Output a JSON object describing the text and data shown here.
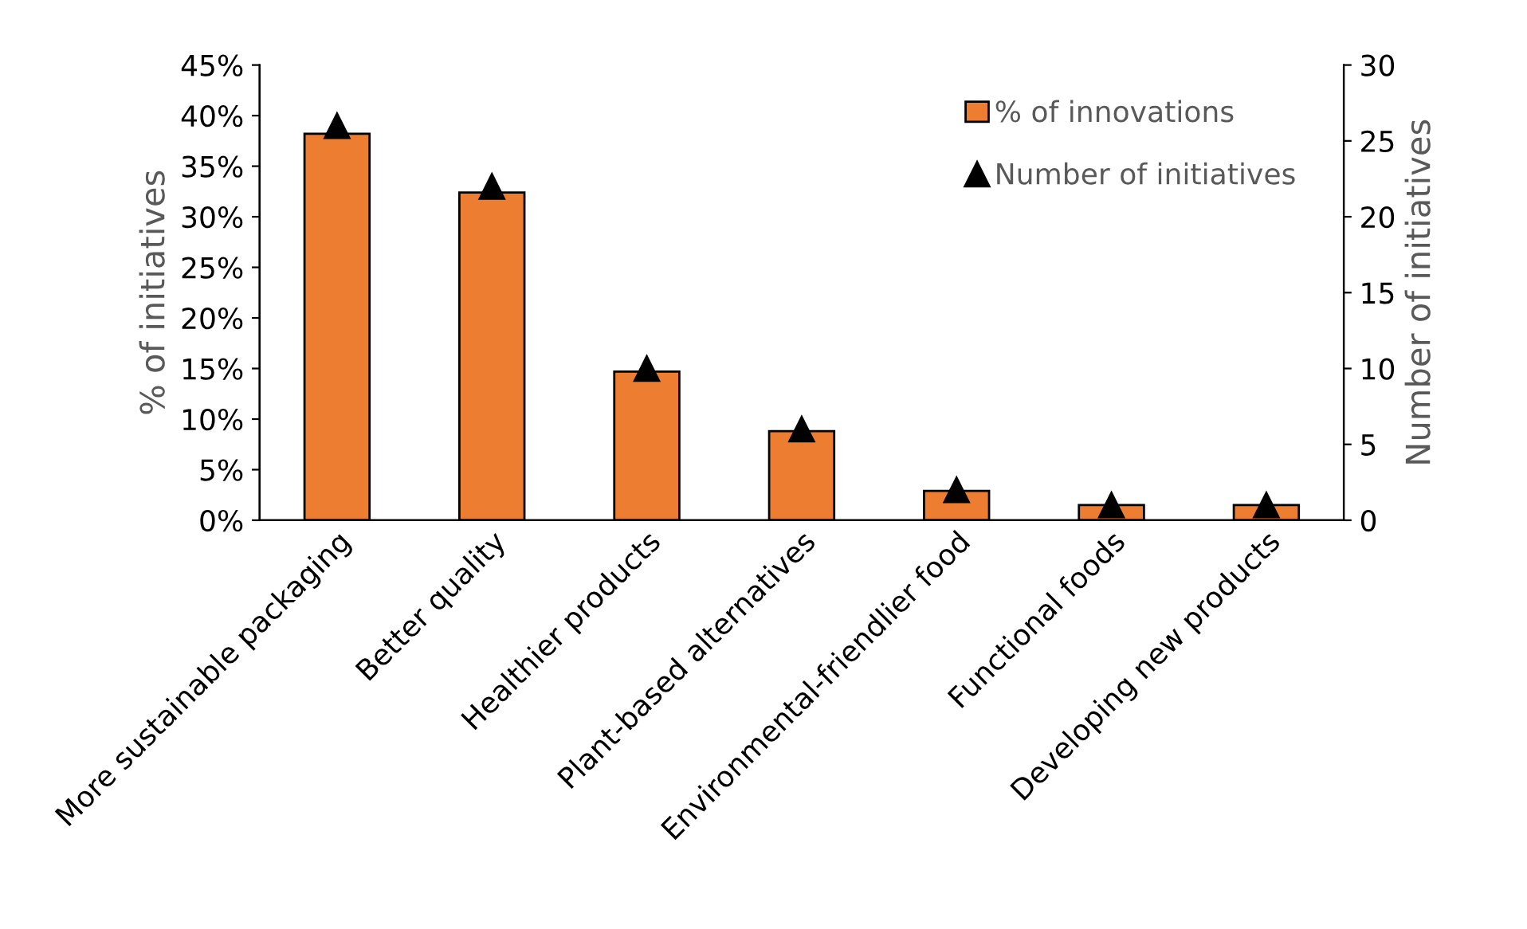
{
  "chart_data": {
    "type": "bar",
    "categories": [
      "More sustainable packaging",
      "Better quality",
      "Healthier products",
      "Plant-based alternatives",
      "Environmental-friendlier food",
      "Functional foods",
      "Developing new products"
    ],
    "ylabel": "% of initiatives",
    "y2label": "Number of initiatives",
    "series": [
      {
        "name": "% of innovations",
        "color": "#ed7d31",
        "values": [
          38.2,
          32.4,
          14.7,
          8.8,
          2.9,
          1.5,
          1.5
        ]
      },
      {
        "name": "Number of initiatives",
        "type": "scatter",
        "axis": "y2",
        "marker": "triangle",
        "color": "#000000",
        "values": [
          26,
          22,
          10,
          6,
          2,
          1,
          1
        ]
      }
    ],
    "ylim": [
      0,
      45
    ],
    "yticks": [
      {
        "value": 0,
        "label": "0%"
      },
      {
        "value": 5,
        "label": "5%"
      },
      {
        "value": 10,
        "label": "10%"
      },
      {
        "value": 15,
        "label": "15%"
      },
      {
        "value": 20,
        "label": "20%"
      },
      {
        "value": 25,
        "label": "25%"
      },
      {
        "value": 30,
        "label": "30%"
      },
      {
        "value": 35,
        "label": "35%"
      },
      {
        "value": 40,
        "label": "40%"
      },
      {
        "value": 45,
        "label": "45%"
      }
    ],
    "y2lim": [
      0,
      30
    ],
    "y2ticks": [
      0,
      5,
      10,
      15,
      20,
      25,
      30
    ],
    "legend": "top right",
    "grid": false
  }
}
